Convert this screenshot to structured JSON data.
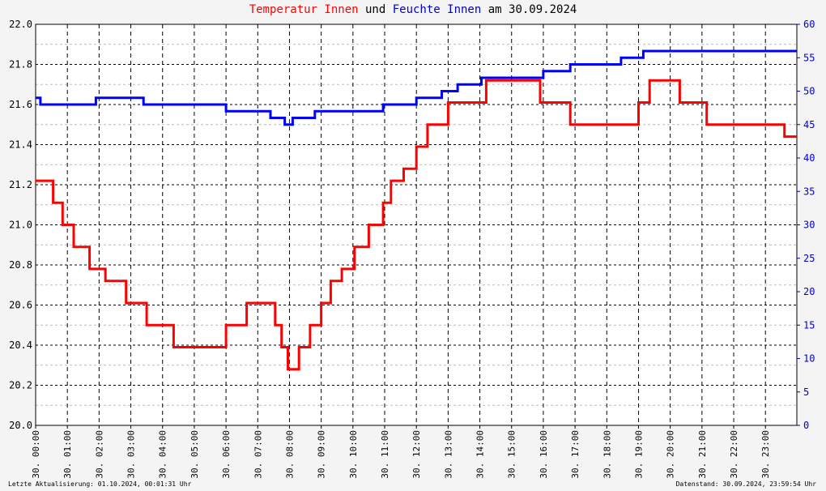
{
  "title": {
    "part1": "Temperatur Innen",
    "part2": "und",
    "part3": "Feuchte Innen",
    "part4": "am 30.09.2024"
  },
  "footer": {
    "left": "Letzte Aktualisierung: 01.10.2024, 00:01:31 Uhr",
    "right": "Datenstand: 30.09.2024, 23:59:54 Uhr"
  },
  "colors": {
    "temperature": "#ff0000",
    "humidity": "#0000ff",
    "grid": "#000000"
  },
  "chart_data": {
    "type": "line",
    "title": "Temperatur Innen und Feuchte Innen am 30.09.2024",
    "x_unit": "hours",
    "xlim": [
      0,
      23.99
    ],
    "x_tick_labels": [
      "30. 00:00",
      "30. 01:00",
      "30. 02:00",
      "30. 03:00",
      "30. 04:00",
      "30. 05:00",
      "30. 06:00",
      "30. 07:00",
      "30. 08:00",
      "30. 09:00",
      "30. 10:00",
      "30. 11:00",
      "30. 12:00",
      "30. 13:00",
      "30. 14:00",
      "30. 15:00",
      "30. 16:00",
      "30. 17:00",
      "30. 18:00",
      "30. 19:00",
      "30. 20:00",
      "30. 21:00",
      "30. 22:00",
      "30. 23:00"
    ],
    "y_left": {
      "min": 20.0,
      "max": 22.0,
      "ticks": [
        "20.0",
        "20.2",
        "20.4",
        "20.6",
        "20.8",
        "21.0",
        "21.2",
        "21.4",
        "21.6",
        "21.8",
        "22.0"
      ]
    },
    "y_right": {
      "min": 0,
      "max": 60,
      "ticks": [
        "0",
        "5",
        "10",
        "15",
        "20",
        "25",
        "30",
        "35",
        "40",
        "45",
        "50",
        "55",
        "60"
      ]
    },
    "grid": true,
    "series": [
      {
        "name": "Temperatur Innen",
        "axis": "left",
        "color": "#ff0000",
        "x": [
          0,
          0.55,
          0.55,
          0.85,
          0.85,
          1.2,
          1.2,
          1.7,
          1.7,
          2.2,
          2.2,
          2.85,
          2.85,
          3.5,
          3.5,
          4.35,
          4.35,
          5.4,
          5.4,
          5.7,
          5.7,
          6.0,
          6.0,
          6.65,
          6.65,
          7.55,
          7.55,
          7.75,
          7.75,
          7.95,
          7.95,
          8.3,
          8.3,
          8.65,
          8.65,
          9.0,
          9.0,
          9.3,
          9.3,
          9.65,
          9.65,
          10.05,
          10.05,
          10.5,
          10.5,
          10.95,
          10.95,
          11.2,
          11.2,
          11.6,
          11.6,
          12.0,
          12.0,
          12.35,
          12.35,
          13.0,
          13.0,
          13.75,
          13.75,
          14.2,
          14.2,
          15.9,
          15.9,
          16.15,
          16.15,
          16.85,
          16.85,
          17.2,
          17.2,
          19.0,
          19.0,
          19.2,
          19.2,
          19.35,
          19.35,
          20.3,
          20.3,
          21.15,
          21.15,
          21.5,
          21.5,
          23.2,
          23.2,
          23.6,
          23.6,
          23.99
        ],
        "values": [
          21.22,
          21.22,
          21.11,
          21.11,
          21.0,
          21.0,
          20.89,
          20.89,
          20.78,
          20.78,
          20.72,
          20.72,
          20.61,
          20.61,
          20.5,
          20.5,
          20.39,
          20.39,
          20.39,
          20.39,
          20.39,
          20.39,
          20.5,
          20.5,
          20.61,
          20.61,
          20.5,
          20.5,
          20.39,
          20.39,
          20.28,
          20.28,
          20.39,
          20.39,
          20.5,
          20.5,
          20.61,
          20.61,
          20.72,
          20.72,
          20.78,
          20.78,
          20.89,
          20.89,
          21.0,
          21.0,
          21.11,
          21.11,
          21.22,
          21.22,
          21.28,
          21.28,
          21.39,
          21.39,
          21.5,
          21.5,
          21.61,
          21.61,
          21.61,
          21.61,
          21.72,
          21.72,
          21.61,
          21.61,
          21.61,
          21.61,
          21.5,
          21.5,
          21.5,
          21.5,
          21.61,
          21.61,
          21.61,
          21.61,
          21.72,
          21.72,
          21.61,
          21.61,
          21.5,
          21.5,
          21.5,
          21.5,
          21.5,
          21.5,
          21.44,
          21.44
        ]
      },
      {
        "name": "Feuchte Innen",
        "axis": "right",
        "color": "#0000ff",
        "x": [
          0,
          0.15,
          0.15,
          1.9,
          1.9,
          3.4,
          3.4,
          6.0,
          6.0,
          7.4,
          7.4,
          7.85,
          7.85,
          8.1,
          8.1,
          8.8,
          8.8,
          10.95,
          10.95,
          12.0,
          12.0,
          12.8,
          12.8,
          13.3,
          13.3,
          14.05,
          14.05,
          16.0,
          16.0,
          16.85,
          16.85,
          18.45,
          18.45,
          19.15,
          19.15,
          23.99
        ],
        "values": [
          49,
          49,
          48,
          48,
          49,
          49,
          48,
          48,
          47,
          47,
          46,
          46,
          45,
          45,
          46,
          46,
          47,
          47,
          48,
          48,
          49,
          49,
          50,
          50,
          51,
          51,
          52,
          52,
          53,
          53,
          54,
          54,
          55,
          55,
          56,
          56
        ]
      }
    ]
  }
}
